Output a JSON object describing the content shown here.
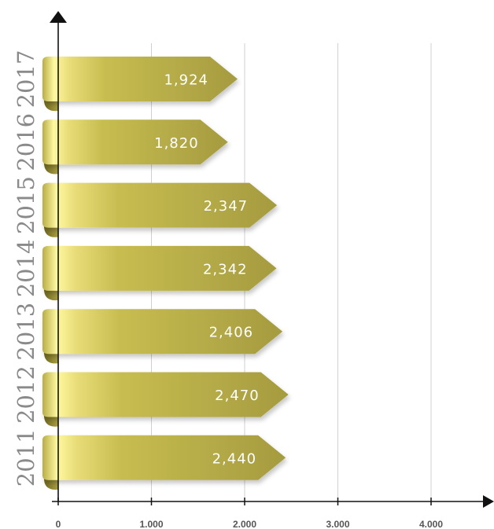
{
  "chart_data": {
    "type": "bar",
    "orientation": "horizontal",
    "categories": [
      "2017",
      "2016",
      "2015",
      "2014",
      "2013",
      "2012",
      "2011"
    ],
    "values": [
      1924,
      1820,
      2347,
      2342,
      2406,
      2470,
      2440
    ],
    "value_labels": [
      "1,924",
      "1,820",
      "2,347",
      "2,342",
      "2,406",
      "2,470",
      "2,440"
    ],
    "x_ticks": [
      0,
      1000,
      2000,
      3000,
      4000
    ],
    "x_tick_labels": [
      "0",
      "1.000",
      "2.000",
      "3.000",
      "4.000"
    ],
    "xlim": [
      0,
      4700
    ],
    "title": "",
    "xlabel": "",
    "ylabel": "",
    "grid": "vertical",
    "legend": "none"
  },
  "colors": {
    "bar_light": "#fff8a0",
    "bar_mid": "#c7bd50",
    "bar_dark": "#a59b40",
    "fold": "#8f8530",
    "axis": "#111111",
    "grid": "#d0d0d0",
    "year_text": "#8a8a8a",
    "value_text": "#ffffff",
    "tick_text": "#555555"
  }
}
